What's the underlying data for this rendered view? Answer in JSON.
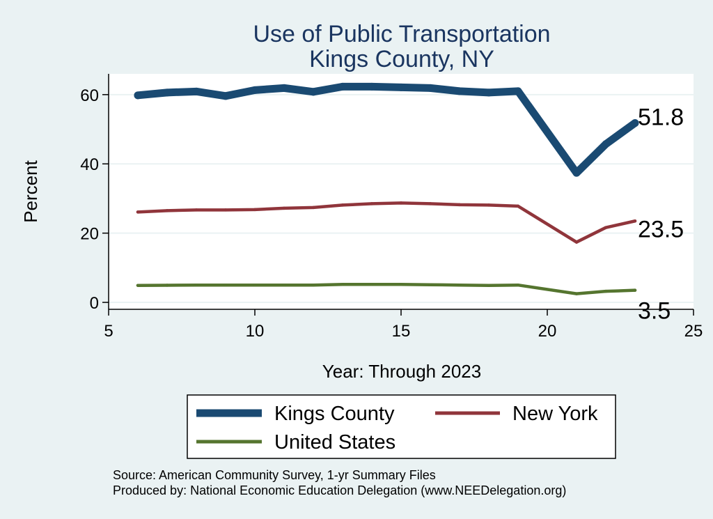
{
  "chart_data": {
    "type": "line",
    "title": [
      "Use of Public Transportation",
      "Kings County, NY"
    ],
    "xlabel": "Year: Through 2023",
    "ylabel": "Percent",
    "xlim": [
      5,
      25
    ],
    "ylim": [
      -2,
      66
    ],
    "xticks": [
      5,
      10,
      15,
      20,
      25
    ],
    "yticks": [
      0,
      20,
      40,
      60
    ],
    "grid": true,
    "x": [
      6,
      7,
      8,
      9,
      10,
      11,
      12,
      13,
      14,
      15,
      16,
      17,
      18,
      19,
      21,
      22,
      23
    ],
    "series": [
      {
        "name": "Kings County",
        "color": "#1A4A72",
        "values": [
          59.8,
          60.6,
          60.9,
          59.6,
          61.3,
          61.9,
          60.8,
          62.3,
          62.3,
          62.1,
          61.9,
          61.0,
          60.6,
          61.0,
          37.4,
          45.7,
          51.8
        ],
        "end_label": "51.8"
      },
      {
        "name": "New York",
        "color": "#90353B",
        "values": [
          26.1,
          26.5,
          26.7,
          26.7,
          26.8,
          27.2,
          27.4,
          28.1,
          28.5,
          28.7,
          28.5,
          28.2,
          28.1,
          27.8,
          17.4,
          21.6,
          23.5
        ],
        "end_label": "23.5"
      },
      {
        "name": "United States",
        "color": "#55752F",
        "values": [
          4.9,
          4.95,
          5.0,
          5.0,
          5.0,
          5.0,
          5.0,
          5.2,
          5.2,
          5.2,
          5.1,
          5.0,
          4.9,
          5.0,
          2.5,
          3.2,
          3.5
        ],
        "end_label": "3.5"
      }
    ],
    "legend": [
      "Kings County",
      "New York",
      "United States"
    ],
    "legend_position": "bottom",
    "notes": [
      "Source: American Community Survey, 1-yr Summary Files",
      "Produced by: National Economic Education Delegation (www.NEEDelegation.org)"
    ]
  }
}
